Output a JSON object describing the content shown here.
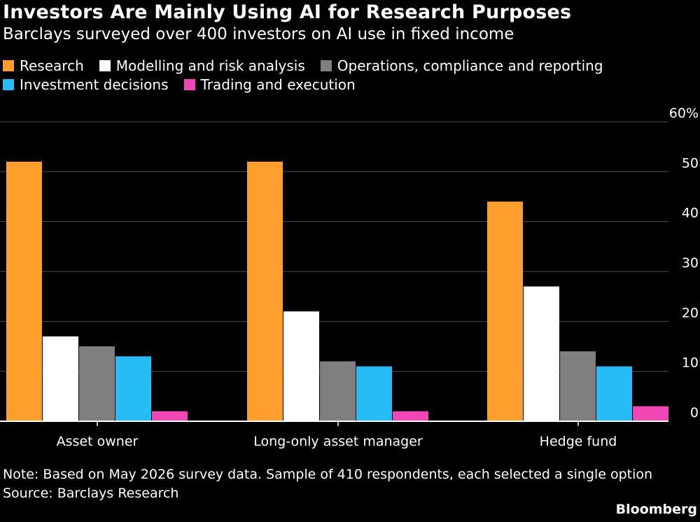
{
  "colors": {
    "background": "#000000",
    "gridline": "#4d4d4d",
    "axis": "#ffffff",
    "text": "#ffffff"
  },
  "chart_data": {
    "type": "bar",
    "title": "Investors Are Mainly Using AI for Research Purposes",
    "subtitle": "Barclays surveyed over 400 investors on AI use in fixed income",
    "categories": [
      "Asset owner",
      "Long-only asset manager",
      "Hedge fund"
    ],
    "series": [
      {
        "name": "Research",
        "color": "#fe9e2c",
        "values": [
          52,
          52,
          44
        ]
      },
      {
        "name": "Modelling and risk analysis",
        "color": "#ffffff",
        "values": [
          17,
          22,
          27
        ]
      },
      {
        "name": "Operations, compliance and reporting",
        "color": "#7f7f7f",
        "values": [
          15,
          12,
          14
        ]
      },
      {
        "name": "Investment decisions",
        "color": "#27bcf6",
        "values": [
          13,
          11,
          11
        ]
      },
      {
        "name": "Trading and execution",
        "color": "#f047b4",
        "values": [
          2,
          2,
          3
        ]
      }
    ],
    "ylim": [
      0,
      60
    ],
    "yticks": [
      0,
      10,
      20,
      30,
      40,
      50,
      60
    ],
    "ytick_labels": [
      "0",
      "10",
      "20",
      "30",
      "40",
      "50",
      "60%"
    ],
    "y_axis_side": "right",
    "grid": true,
    "legend_position": "top-left"
  },
  "note": "Note: Based on May 2026 survey data. Sample of 410 respondents, each selected a single option",
  "source": "Source: Barclays Research",
  "brand": "Bloomberg"
}
